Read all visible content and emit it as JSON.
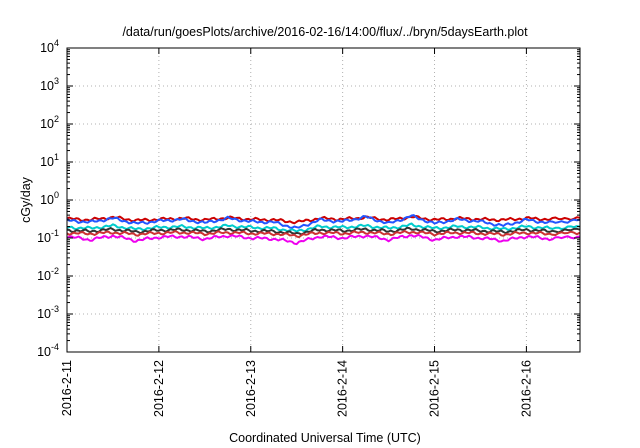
{
  "chart_data": {
    "type": "line",
    "title": "/data/run/goesPlots/archive/2016-02-16/14:00/flux/../bryn/5daysEarth.plot",
    "xlabel": "Coordinated Universal Time (UTC)",
    "ylabel": "cGy/day",
    "y_scale": "log",
    "ylim": [
      0.0001,
      10000
    ],
    "xlim": [
      "2016-02-11 00:00",
      "2016-02-16 14:00"
    ],
    "grid": true,
    "x_ticks": [
      {
        "value": "2016-02-11 00:00",
        "label": "2016-2-11"
      },
      {
        "value": "2016-02-12 00:00",
        "label": "2016-2-12"
      },
      {
        "value": "2016-02-13 00:00",
        "label": "2016-2-13"
      },
      {
        "value": "2016-02-14 00:00",
        "label": "2016-2-14"
      },
      {
        "value": "2016-02-15 00:00",
        "label": "2016-2-15"
      },
      {
        "value": "2016-02-16 00:00",
        "label": "2016-2-16"
      }
    ],
    "y_ticks": [
      {
        "value": 0.0001,
        "base": "10",
        "exp": "-4"
      },
      {
        "value": 0.001,
        "base": "10",
        "exp": "-3"
      },
      {
        "value": 0.01,
        "base": "10",
        "exp": "-2"
      },
      {
        "value": 0.1,
        "base": "10",
        "exp": "-1"
      },
      {
        "value": 1,
        "base": "10",
        "exp": "0"
      },
      {
        "value": 10,
        "base": "10",
        "exp": "1"
      },
      {
        "value": 100,
        "base": "10",
        "exp": "2"
      },
      {
        "value": 1000,
        "base": "10",
        "exp": "3"
      },
      {
        "value": 10000,
        "base": "10",
        "exp": "4"
      }
    ],
    "x": [
      "2016-02-11 00:00",
      "2016-02-11 06:00",
      "2016-02-11 12:00",
      "2016-02-11 18:00",
      "2016-02-12 00:00",
      "2016-02-12 06:00",
      "2016-02-12 12:00",
      "2016-02-12 18:00",
      "2016-02-13 00:00",
      "2016-02-13 06:00",
      "2016-02-13 12:00",
      "2016-02-13 18:00",
      "2016-02-14 00:00",
      "2016-02-14 06:00",
      "2016-02-14 12:00",
      "2016-02-14 18:00",
      "2016-02-15 00:00",
      "2016-02-15 06:00",
      "2016-02-15 12:00",
      "2016-02-15 18:00",
      "2016-02-16 00:00",
      "2016-02-16 06:00",
      "2016-02-16 14:00"
    ],
    "series": [
      {
        "color": "#cc0000",
        "values": [
          0.32,
          0.3,
          0.35,
          0.29,
          0.31,
          0.33,
          0.3,
          0.34,
          0.31,
          0.3,
          0.26,
          0.33,
          0.31,
          0.35,
          0.3,
          0.36,
          0.3,
          0.33,
          0.31,
          0.3,
          0.33,
          0.31,
          0.34
        ]
      },
      {
        "color": "#2255ff",
        "values": [
          0.29,
          0.26,
          0.33,
          0.24,
          0.28,
          0.31,
          0.25,
          0.33,
          0.27,
          0.26,
          0.18,
          0.3,
          0.27,
          0.36,
          0.24,
          0.38,
          0.24,
          0.31,
          0.27,
          0.21,
          0.3,
          0.25,
          0.3
        ]
      },
      {
        "color": "#00cccc",
        "values": [
          0.19,
          0.18,
          0.21,
          0.17,
          0.19,
          0.2,
          0.18,
          0.21,
          0.19,
          0.18,
          0.15,
          0.2,
          0.19,
          0.21,
          0.18,
          0.22,
          0.18,
          0.2,
          0.19,
          0.17,
          0.2,
          0.18,
          0.2
        ]
      },
      {
        "color": "#333333",
        "values": [
          0.16,
          0.15,
          0.17,
          0.145,
          0.16,
          0.165,
          0.15,
          0.17,
          0.155,
          0.15,
          0.13,
          0.165,
          0.155,
          0.17,
          0.15,
          0.175,
          0.15,
          0.165,
          0.155,
          0.145,
          0.165,
          0.15,
          0.165
        ]
      },
      {
        "color": "#cc3333",
        "values": [
          0.135,
          0.13,
          0.14,
          0.125,
          0.135,
          0.14,
          0.13,
          0.14,
          0.132,
          0.13,
          0.115,
          0.138,
          0.132,
          0.142,
          0.128,
          0.145,
          0.128,
          0.138,
          0.132,
          0.124,
          0.138,
          0.128,
          0.138
        ]
      },
      {
        "color": "#ee00ee",
        "values": [
          0.11,
          0.09,
          0.115,
          0.085,
          0.105,
          0.11,
          0.095,
          0.115,
          0.1,
          0.095,
          0.075,
          0.11,
          0.1,
          0.115,
          0.09,
          0.12,
          0.09,
          0.11,
          0.1,
          0.085,
          0.11,
          0.095,
          0.11
        ]
      }
    ]
  }
}
